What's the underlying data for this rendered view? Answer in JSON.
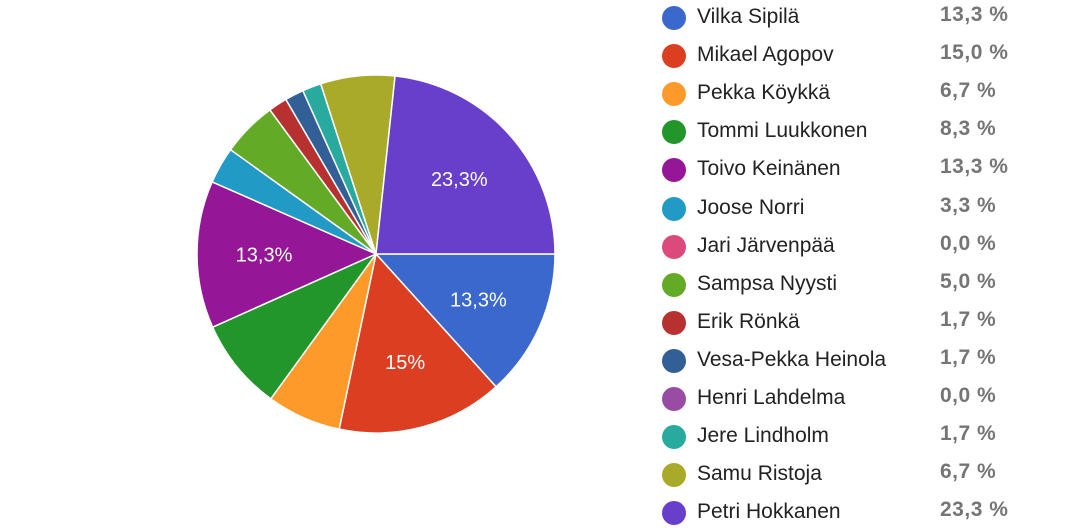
{
  "chart_data": {
    "type": "pie",
    "slices": [
      {
        "name": "Vilka Sipilä",
        "percent_label": "13,3 %",
        "value": 13.3,
        "color": "#3b68cc",
        "slice_label": "13,3%"
      },
      {
        "name": "Mikael Agopov",
        "percent_label": "15,0 %",
        "value": 15.0,
        "color": "#db3e21",
        "slice_label": "15%"
      },
      {
        "name": "Pekka Köykkä",
        "percent_label": "6,7 %",
        "value": 6.7,
        "color": "#fd9a2a",
        "slice_label": ""
      },
      {
        "name": "Tommi Luukkonen",
        "percent_label": "8,3 %",
        "value": 8.3,
        "color": "#22962a",
        "slice_label": ""
      },
      {
        "name": "Toivo Keinänen",
        "percent_label": "13,3 %",
        "value": 13.3,
        "color": "#951697",
        "slice_label": "13,3%"
      },
      {
        "name": "Joose Norri",
        "percent_label": "3,3 %",
        "value": 3.3,
        "color": "#229ac6",
        "slice_label": ""
      },
      {
        "name": "Jari Järvenpää",
        "percent_label": "0,0 %",
        "value": 0.0,
        "color": "#dc4a7c",
        "slice_label": ""
      },
      {
        "name": "Sampsa Nyysti",
        "percent_label": "5,0 %",
        "value": 5.0,
        "color": "#63aa27",
        "slice_label": ""
      },
      {
        "name": "Erik Rönkä",
        "percent_label": "1,7 %",
        "value": 1.7,
        "color": "#b6312f",
        "slice_label": ""
      },
      {
        "name": "Vesa-Pekka Heinola",
        "percent_label": "1,7 %",
        "value": 1.7,
        "color": "#325f96",
        "slice_label": ""
      },
      {
        "name": "Henri Lahdelma",
        "percent_label": "0,0 %",
        "value": 0.0,
        "color": "#9a4ba4",
        "slice_label": ""
      },
      {
        "name": "Jere Lindholm",
        "percent_label": "1,7 %",
        "value": 1.7,
        "color": "#29aa9e",
        "slice_label": ""
      },
      {
        "name": "Samu Ristoja",
        "percent_label": "6,7 %",
        "value": 6.7,
        "color": "#a9aa2a",
        "slice_label": ""
      },
      {
        "name": "Petri Hokkanen",
        "percent_label": "23,3 %",
        "value": 23.3,
        "color": "#673fcb",
        "slice_label": "23,3%"
      }
    ],
    "legend_position": "right"
  }
}
